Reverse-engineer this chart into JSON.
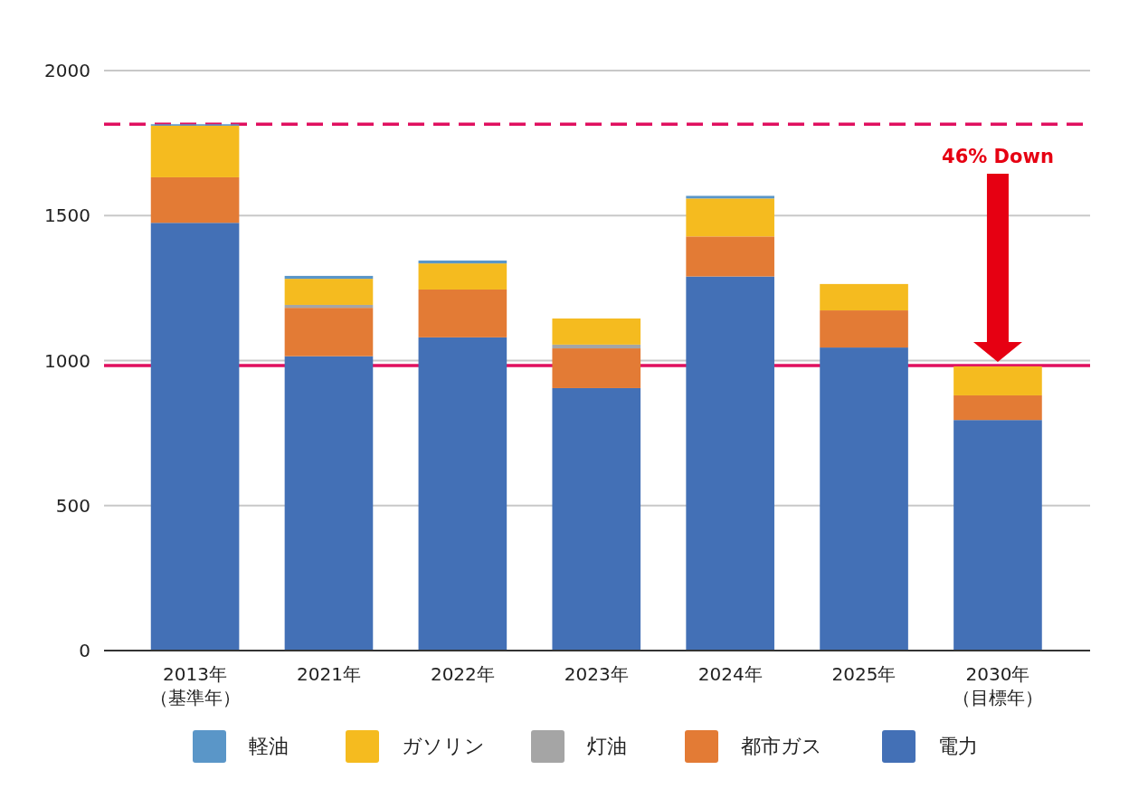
{
  "chart_data": {
    "type": "bar",
    "stacked": true,
    "categories": [
      "2013年（基準年）",
      "2021年",
      "2022年",
      "2023年",
      "2024年",
      "2025年",
      "2030年（目標年）"
    ],
    "series": [
      {
        "name": "電力",
        "color": "#4370b6",
        "values": [
          1475,
          1015,
          1080,
          905,
          1290,
          1045,
          795
        ]
      },
      {
        "name": "都市ガス",
        "color": "#e37b35",
        "values": [
          157,
          167,
          165,
          137,
          138,
          128,
          85
        ]
      },
      {
        "name": "灯油",
        "color": "#a5a5a5",
        "values": [
          0,
          10,
          0,
          13,
          0,
          0,
          0
        ]
      },
      {
        "name": "ガソリン",
        "color": "#f5bb1f",
        "values": [
          178,
          90,
          90,
          90,
          131,
          91,
          100
        ]
      },
      {
        "name": "軽油",
        "color": "#5a96c8",
        "values": [
          5,
          10,
          10,
          0,
          9,
          0,
          0
        ]
      }
    ],
    "ylim": [
      0,
      2000
    ],
    "yticks": [
      0,
      500,
      1000,
      1500,
      2000
    ],
    "grid": "y",
    "legend": "bottom",
    "ref_lines": [
      {
        "axis": "y",
        "value": 1815,
        "color": "#e0105f",
        "line_style": "dashed"
      },
      {
        "axis": "y",
        "value": 983,
        "color": "#e0105f",
        "line_style": "solid"
      }
    ],
    "annotations": [
      "46% Down"
    ]
  }
}
